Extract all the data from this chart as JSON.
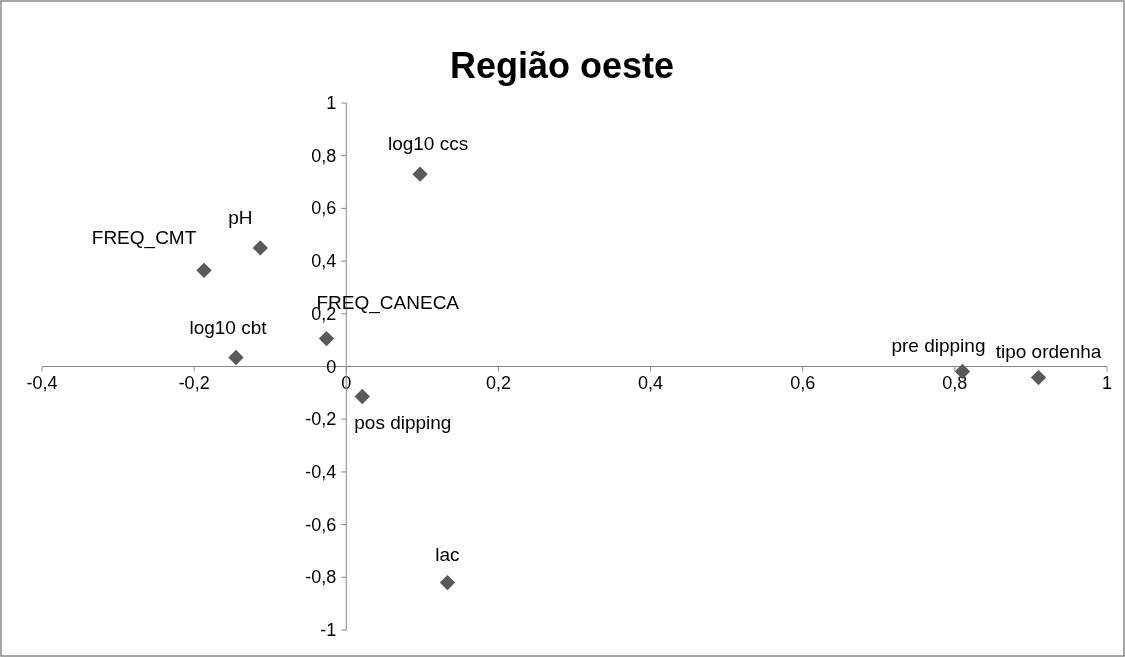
{
  "chart_data": {
    "type": "scatter",
    "title": "Região oeste",
    "marker": "diamond",
    "grid": false,
    "x": [
      0.097,
      -0.113,
      -0.187,
      -0.026,
      -0.145,
      0.021,
      0.81,
      0.91,
      0.133
    ],
    "series": [
      {
        "color": "#595959",
        "values": [
          0.73,
          0.45,
          0.365,
          0.106,
          0.034,
          -0.114,
          -0.019,
          -0.042,
          -0.82
        ]
      }
    ],
    "annotations": [
      {
        "text": "log10 ccs",
        "x": 0.097,
        "y": 0.73
      },
      {
        "text": "pH",
        "x": -0.113,
        "y": 0.45
      },
      {
        "text": "FREQ_CMT",
        "x": -0.187,
        "y": 0.365
      },
      {
        "text": "FREQ_CANECA",
        "x": -0.026,
        "y": 0.106
      },
      {
        "text": "log10 cbt",
        "x": -0.145,
        "y": 0.034
      },
      {
        "text": "pos dipping",
        "x": 0.021,
        "y": -0.114
      },
      {
        "text": "pre dipping",
        "x": 0.81,
        "y": -0.019
      },
      {
        "text": "tipo ordenha",
        "x": 0.91,
        "y": -0.042
      },
      {
        "text": "lac",
        "x": 0.133,
        "y": -0.82
      }
    ],
    "xlim": [
      -0.4,
      1
    ],
    "ylim": [
      -1,
      1
    ],
    "xticks": [
      {
        "value": -0.4,
        "label": "-0,4"
      },
      {
        "value": -0.2,
        "label": "-0,2"
      },
      0,
      {
        "value": 0.2,
        "label": "0,2"
      },
      {
        "value": 0.4,
        "label": "0,4"
      },
      {
        "value": 0.6,
        "label": "0,6"
      },
      {
        "value": 0.8,
        "label": "0,8"
      },
      1
    ],
    "yticks": [
      -1,
      {
        "value": -0.8,
        "label": "-0,8"
      },
      {
        "value": -0.6,
        "label": "-0,6"
      },
      {
        "value": -0.4,
        "label": "-0,4"
      },
      {
        "value": -0.2,
        "label": "-0,2"
      },
      0,
      {
        "value": 0.2,
        "label": "0,2"
      },
      {
        "value": 0.4,
        "label": "0,4"
      },
      {
        "value": 0.6,
        "label": "0,6"
      },
      {
        "value": 0.8,
        "label": "0,8"
      },
      1
    ]
  }
}
